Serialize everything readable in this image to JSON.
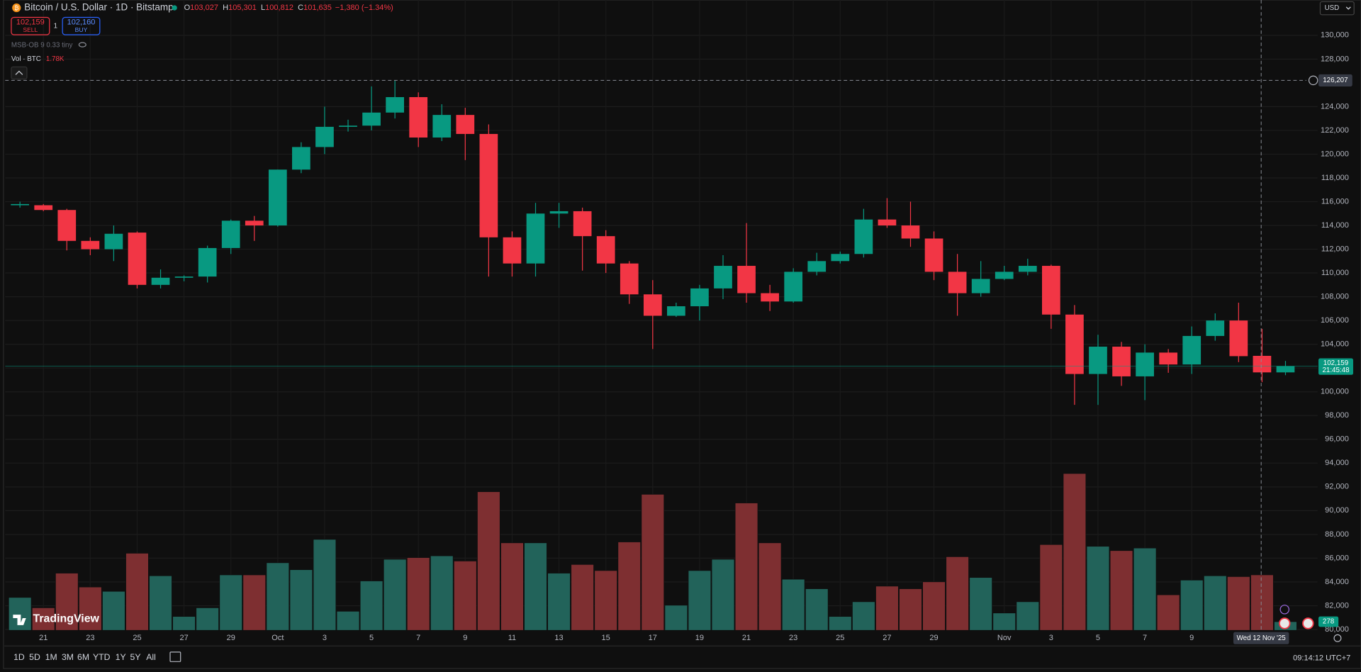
{
  "header": {
    "symbol": "Bitcoin / U.S. Dollar · 1D · Bitstamp",
    "ohlc": [
      {
        "label": "O",
        "value": "103,027"
      },
      {
        "label": "H",
        "value": "105,301"
      },
      {
        "label": "L",
        "value": "100,812"
      },
      {
        "label": "C",
        "value": "101,635"
      }
    ],
    "change": "−1,380 (−1.34%)",
    "currency": "USD"
  },
  "trade": {
    "sell": {
      "price": "102,159",
      "label": "SELL"
    },
    "spread": "1",
    "buy": {
      "price": "102,160",
      "label": "BUY"
    }
  },
  "indicators": {
    "msb": "MSB-OB 9 0.33 tiny",
    "volume": {
      "label": "Vol · BTC",
      "value": "1.78K"
    }
  },
  "logo": "TradingView",
  "toolbar": {
    "ranges": [
      "1D",
      "5D",
      "1M",
      "3M",
      "6M",
      "YTD",
      "1Y",
      "5Y",
      "All"
    ],
    "clock": "09:14:12 UTC+7"
  },
  "chart_data": {
    "type": "candlestick",
    "categories": [
      null,
      "21",
      null,
      "23",
      null,
      "25",
      null,
      "27",
      null,
      "29",
      null,
      "Oct",
      null,
      "3",
      null,
      "5",
      null,
      "7",
      null,
      "9",
      null,
      "11",
      null,
      "13",
      null,
      "15",
      null,
      "17",
      null,
      "19",
      null,
      "21",
      null,
      "23",
      null,
      "25",
      null,
      "27",
      null,
      "29",
      null,
      null,
      "Nov",
      null,
      "3",
      null,
      "5",
      null,
      "7",
      null,
      "9",
      null,
      null,
      null,
      null
    ],
    "open": [
      115700,
      115700,
      115300,
      112700,
      112000,
      113400,
      109000,
      109600,
      109700,
      112100,
      114400,
      114000,
      118700,
      120600,
      122300,
      122400,
      123500,
      124800,
      121400,
      123300,
      121700,
      113000,
      110800,
      115000,
      115200,
      113100,
      110800,
      108200,
      106400,
      107200,
      108700,
      110600,
      108300,
      107600,
      110100,
      111000,
      111600,
      114500,
      114000,
      112900,
      110100,
      108300,
      109500,
      110100,
      110600,
      106500,
      101500,
      103800,
      101300,
      103300,
      102300,
      104700,
      106000,
      103027,
      101635
    ],
    "high": [
      116000,
      115800,
      115400,
      113000,
      114000,
      113500,
      110300,
      109800,
      112300,
      114500,
      114800,
      118700,
      121000,
      124000,
      122900,
      125700,
      126200,
      125200,
      124200,
      123900,
      122500,
      113500,
      115900,
      115900,
      115500,
      113600,
      111000,
      109400,
      107500,
      109000,
      111500,
      114200,
      109000,
      110400,
      111700,
      111800,
      115400,
      116300,
      116000,
      113500,
      111600,
      111000,
      110600,
      111200,
      110700,
      107300,
      104800,
      104200,
      104000,
      103600,
      105500,
      106600,
      107500,
      105301,
      102600
    ],
    "low": [
      115500,
      115200,
      111900,
      111500,
      111000,
      108700,
      108700,
      109300,
      109200,
      111600,
      112700,
      113900,
      118400,
      120000,
      121900,
      122000,
      123000,
      120600,
      121100,
      119500,
      109700,
      109700,
      109700,
      113800,
      110200,
      110000,
      107400,
      103600,
      106300,
      106000,
      107800,
      107500,
      106800,
      107500,
      109800,
      110800,
      111300,
      113800,
      112200,
      109400,
      106400,
      108000,
      109400,
      109800,
      105300,
      98900,
      98900,
      100500,
      99300,
      101600,
      101500,
      104300,
      102500,
      100812,
      101400
    ],
    "close": [
      115800,
      115300,
      112700,
      112000,
      113300,
      109000,
      109600,
      109700,
      112100,
      114400,
      114000,
      118700,
      120600,
      122300,
      122400,
      123500,
      124800,
      121400,
      123300,
      121700,
      113000,
      110800,
      115000,
      115200,
      113100,
      110800,
      108200,
      106400,
      107200,
      108700,
      110600,
      108300,
      107600,
      110100,
      111000,
      111600,
      114500,
      114000,
      112900,
      110100,
      108300,
      109500,
      110100,
      110600,
      106500,
      101500,
      103800,
      101300,
      103300,
      102300,
      104700,
      106000,
      103000,
      101635,
      102159
    ],
    "up_color": "#089981",
    "down_color": "#f23645",
    "volume": {
      "name": "Vol",
      "values": [
        1056,
        723,
        1835,
        1390,
        1251,
        2474,
        1751,
        445,
        723,
        1779,
        1779,
        2168,
        1946,
        2919,
        612,
        1585,
        2280,
        2335,
        2391,
        2224,
        4448,
        2808,
        2808,
        1835,
        2113,
        1918,
        2836,
        4365,
        806,
        1918,
        2280,
        4087,
        2808,
        1640,
        1334,
        445,
        917,
        1418,
        1334,
        1557,
        2363,
        1696,
        556,
        917,
        2752,
        5032,
        2697,
        2558,
        2641,
        1140,
        1612,
        1751,
        1724,
        1780,
        278
      ],
      "ylim": [
        0,
        20200
      ],
      "up_color": "#22635a",
      "down_color": "#7e2f31"
    },
    "ylim": [
      80000,
      132900
    ],
    "yticks": [
      {
        "value": 80000,
        "label": "80,000"
      },
      {
        "value": 82000,
        "label": "82,000"
      },
      {
        "value": 84000,
        "label": "84,000"
      },
      {
        "value": 86000,
        "label": "86,000"
      },
      {
        "value": 88000,
        "label": "88,000"
      },
      {
        "value": 90000,
        "label": "90,000"
      },
      {
        "value": 92000,
        "label": "92,000"
      },
      {
        "value": 94000,
        "label": "94,000"
      },
      {
        "value": 96000,
        "label": "96,000"
      },
      {
        "value": 98000,
        "label": "98,000"
      },
      {
        "value": 100000,
        "label": "100,000"
      },
      {
        "value": 102000,
        "label": "102,000"
      },
      {
        "value": 104000,
        "label": "104,000"
      },
      {
        "value": 106000,
        "label": "106,000"
      },
      {
        "value": 108000,
        "label": "108,000"
      },
      {
        "value": 110000,
        "label": "110,000"
      },
      {
        "value": 112000,
        "label": "112,000"
      },
      {
        "value": 114000,
        "label": "114,000"
      },
      {
        "value": 116000,
        "label": "116,000"
      },
      {
        "value": 118000,
        "label": "118,000"
      },
      {
        "value": 120000,
        "label": "120,000"
      },
      {
        "value": 122000,
        "label": "122,000"
      },
      {
        "value": 124000,
        "label": "124,000"
      },
      {
        "value": 128000,
        "label": "128,000"
      },
      {
        "value": 130000,
        "label": "130,000"
      }
    ],
    "grid": true,
    "last_price": {
      "value": 102159,
      "label": "102,159",
      "countdown": "21:45:48"
    },
    "crosshair": {
      "price": {
        "value": 126207,
        "label": "126,207"
      },
      "date_label": "Wed 12 Nov '25"
    }
  }
}
